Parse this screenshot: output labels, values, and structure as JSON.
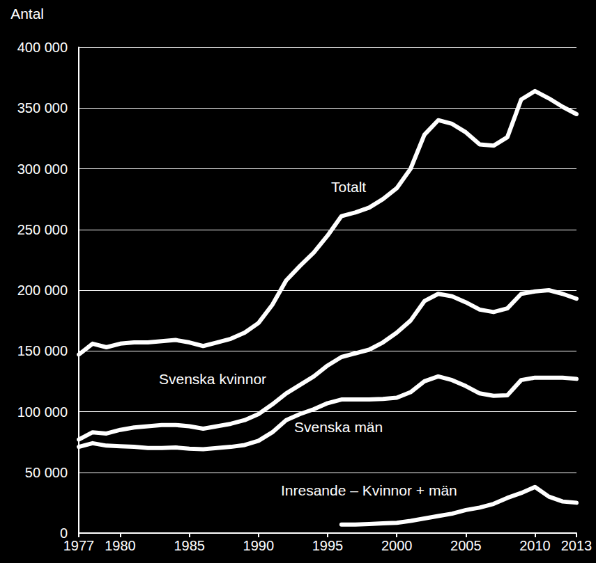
{
  "chart_data": {
    "type": "line",
    "y_label": "Antal",
    "x": [
      1977,
      1978,
      1979,
      1980,
      1981,
      1982,
      1983,
      1984,
      1985,
      1986,
      1987,
      1988,
      1989,
      1990,
      1991,
      1992,
      1993,
      1994,
      1995,
      1996,
      1997,
      1998,
      1999,
      2000,
      2001,
      2002,
      2003,
      2004,
      2005,
      2006,
      2007,
      2008,
      2009,
      2010,
      2011,
      2012,
      2013
    ],
    "series": [
      {
        "name": "Totalt",
        "color": "#ffffff",
        "values": [
          147000,
          156000,
          153000,
          156000,
          157000,
          157000,
          158000,
          159000,
          157000,
          154000,
          157000,
          160000,
          165000,
          173000,
          188000,
          208000,
          220000,
          231000,
          245000,
          261000,
          264000,
          268000,
          275000,
          284000,
          300000,
          328000,
          340000,
          337000,
          330000,
          320000,
          319000,
          326000,
          357000,
          364000,
          358000,
          351000,
          345000
        ]
      },
      {
        "name": "Svenska kvinnor",
        "color": "#ffffff",
        "values": [
          77000,
          83000,
          82000,
          85000,
          87000,
          88000,
          89000,
          89000,
          88000,
          86000,
          88000,
          90000,
          93000,
          98000,
          106000,
          115000,
          122000,
          129000,
          138000,
          145000,
          148000,
          151000,
          157000,
          165000,
          175000,
          191000,
          197000,
          195000,
          190000,
          184000,
          182000,
          185000,
          197000,
          199000,
          200000,
          197000,
          193000
        ]
      },
      {
        "name": "Svenska män",
        "color": "#ffffff",
        "values": [
          71000,
          74000,
          72000,
          71500,
          71000,
          70000,
          70000,
          70500,
          69500,
          69000,
          70000,
          71000,
          72500,
          76000,
          83000,
          93000,
          98000,
          102000,
          107000,
          110000,
          110000,
          110000,
          110500,
          111500,
          116000,
          125000,
          129000,
          126000,
          121000,
          115000,
          113000,
          113500,
          126000,
          128000,
          128000,
          128000,
          127000
        ]
      },
      {
        "name": "Inresande – Kvinnor + män",
        "color": "#ffffff",
        "values": [
          null,
          null,
          null,
          null,
          null,
          null,
          null,
          null,
          null,
          null,
          null,
          null,
          null,
          null,
          null,
          null,
          null,
          null,
          null,
          7000,
          7000,
          7500,
          8000,
          8500,
          10000,
          12000,
          14000,
          16000,
          19000,
          21000,
          24000,
          29000,
          33000,
          38000,
          30000,
          26000,
          25000
        ]
      }
    ],
    "xlim": [
      1977,
      2013
    ],
    "xticks": [
      1977,
      1980,
      1985,
      1990,
      1995,
      2000,
      2005,
      2010,
      2013
    ],
    "ylim": [
      0,
      400000
    ],
    "yticks": [
      0,
      {
        "value": 50000,
        "label": "50 000"
      },
      {
        "value": 100000,
        "label": "100 000"
      },
      {
        "value": 150000,
        "label": "150 000"
      },
      {
        "value": 200000,
        "label": "200 000"
      },
      {
        "value": 250000,
        "label": "250 000"
      },
      {
        "value": 300000,
        "label": "300 000"
      },
      {
        "value": 350000,
        "label": "350 000"
      },
      {
        "value": 400000,
        "label": "400 000"
      }
    ],
    "grid": true
  }
}
